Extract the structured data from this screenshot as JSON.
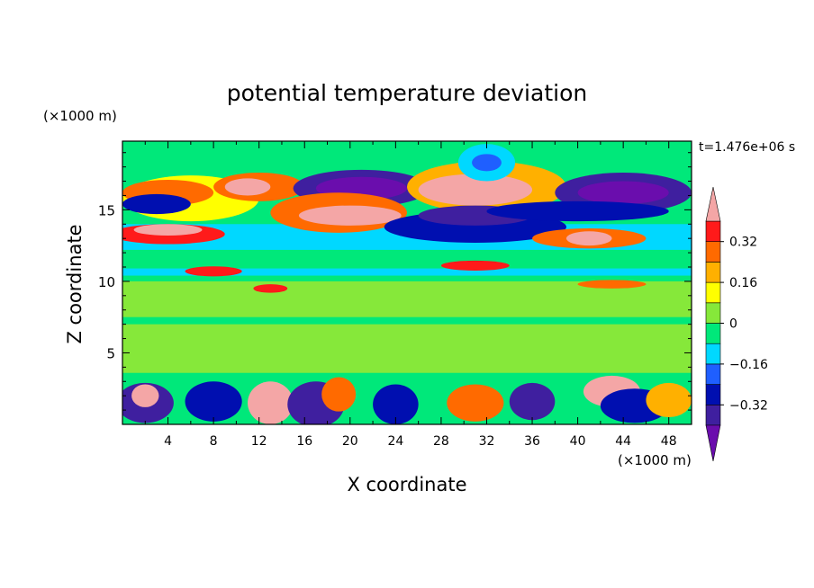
{
  "chart_data": {
    "type": "heatmap",
    "title": "potential temperature deviation",
    "xlabel": "X coordinate",
    "ylabel": "Z coordinate",
    "x_unit": "(×1000 m)",
    "y_unit": "(×1000 m)",
    "time_label": "t=1.476e+06 s",
    "xlim": [
      0,
      50
    ],
    "ylim": [
      0,
      19.8
    ],
    "x_ticks": [
      4,
      8,
      12,
      16,
      20,
      24,
      28,
      32,
      36,
      40,
      44,
      48
    ],
    "y_ticks": [
      5,
      10,
      15
    ],
    "colorbar": {
      "label_values": [
        "0.32",
        "0.16",
        "0",
        "−0.16",
        "−0.32"
      ],
      "levels": [
        -0.4,
        -0.32,
        -0.24,
        -0.16,
        -0.08,
        0,
        0.08,
        0.16,
        0.24,
        0.32,
        0.4
      ],
      "colors": [
        "#6a0dad",
        "#3f1f9f",
        "#000fb0",
        "#1f5fff",
        "#00d8ff",
        "#00e87a",
        "#86e83a",
        "#ffff00",
        "#ffb000",
        "#ff6a00",
        "#ff1a1a",
        "#f4a6a6"
      ],
      "extend": "both"
    },
    "grid": false
  }
}
